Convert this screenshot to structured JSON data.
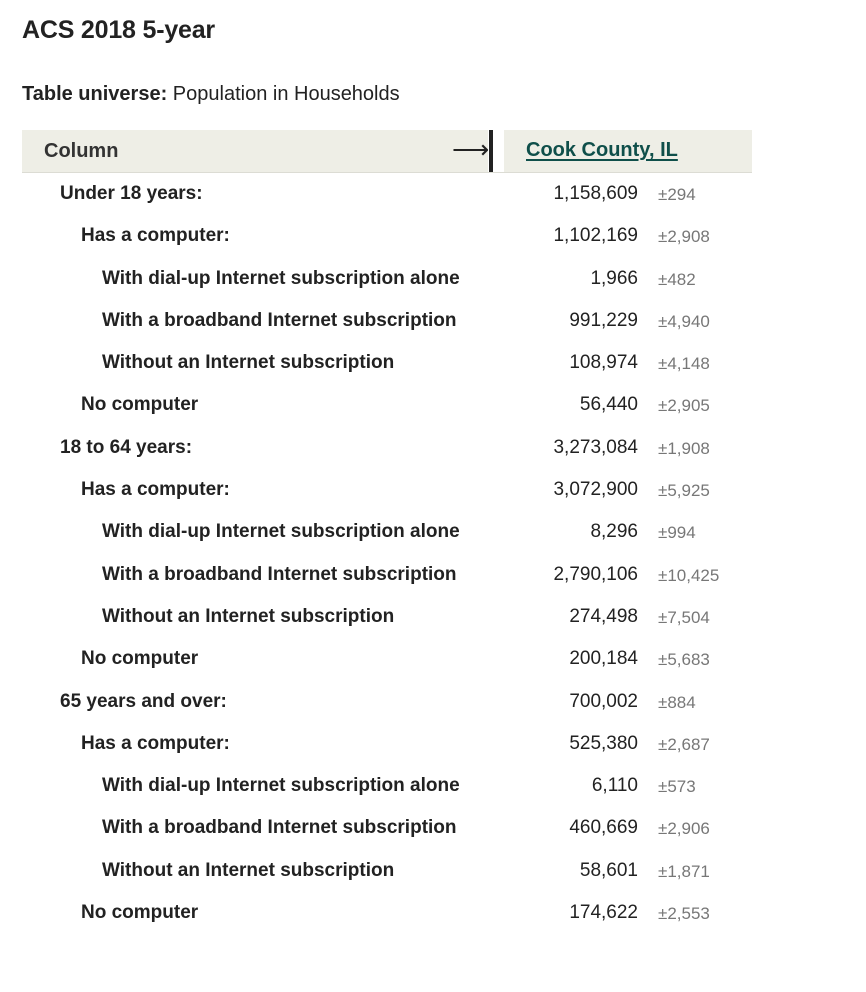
{
  "title": "ACS 2018 5-year",
  "universe": {
    "label": "Table universe:",
    "value": "Population in Households"
  },
  "table": {
    "column_header": "Column",
    "arrow_icon": "right-arrow-icon",
    "geography": "Cook County, IL",
    "rows": [
      {
        "label": "Under 18 years:",
        "level": 1,
        "value": "1,158,609",
        "moe": "±294"
      },
      {
        "label": "Has a computer:",
        "level": 2,
        "value": "1,102,169",
        "moe": "±2,908"
      },
      {
        "label": "With dial-up Internet subscription alone",
        "level": 3,
        "value": "1,966",
        "moe": "±482"
      },
      {
        "label": "With a broadband Internet subscription",
        "level": 3,
        "value": "991,229",
        "moe": "±4,940"
      },
      {
        "label": "Without an Internet subscription",
        "level": 3,
        "value": "108,974",
        "moe": "±4,148"
      },
      {
        "label": "No computer",
        "level": 2,
        "value": "56,440",
        "moe": "±2,905"
      },
      {
        "label": "18 to 64 years:",
        "level": 1,
        "value": "3,273,084",
        "moe": "±1,908"
      },
      {
        "label": "Has a computer:",
        "level": 2,
        "value": "3,072,900",
        "moe": "±5,925"
      },
      {
        "label": "With dial-up Internet subscription alone",
        "level": 3,
        "value": "8,296",
        "moe": "±994"
      },
      {
        "label": "With a broadband Internet subscription",
        "level": 3,
        "value": "2,790,106",
        "moe": "±10,425"
      },
      {
        "label": "Without an Internet subscription",
        "level": 3,
        "value": "274,498",
        "moe": "±7,504"
      },
      {
        "label": "No computer",
        "level": 2,
        "value": "200,184",
        "moe": "±5,683"
      },
      {
        "label": "65 years and over:",
        "level": 1,
        "value": "700,002",
        "moe": "±884"
      },
      {
        "label": "Has a computer:",
        "level": 2,
        "value": "525,380",
        "moe": "±2,687"
      },
      {
        "label": "With dial-up Internet subscription alone",
        "level": 3,
        "value": "6,110",
        "moe": "±573"
      },
      {
        "label": "With a broadband Internet subscription",
        "level": 3,
        "value": "460,669",
        "moe": "±2,906"
      },
      {
        "label": "Without an Internet subscription",
        "level": 3,
        "value": "58,601",
        "moe": "±1,871"
      },
      {
        "label": "No computer",
        "level": 2,
        "value": "174,622",
        "moe": "±2,553"
      }
    ]
  }
}
